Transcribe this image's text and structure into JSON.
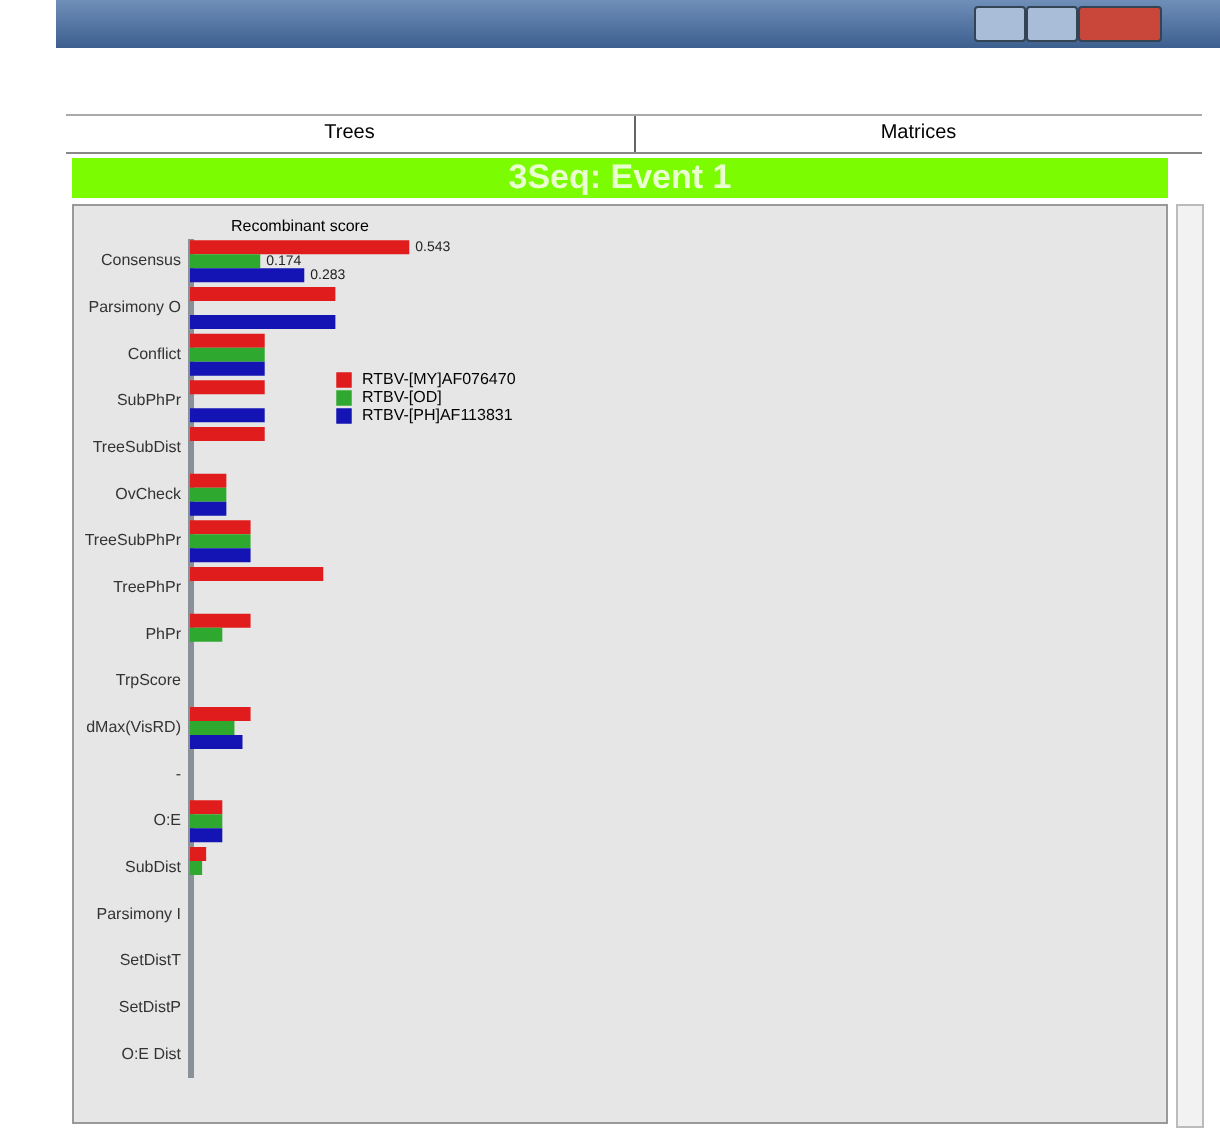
{
  "chart_data": {
    "type": "bar",
    "orientation": "horizontal",
    "title": "3Seq: Event 1",
    "xlabel": "Recombinant score",
    "annotations": [
      "Trees",
      "Matrices"
    ],
    "categories": [
      "Consensus",
      "Parsimony O",
      "Conflict",
      "SubPhPr",
      "TreeSubDist",
      "OvCheck",
      "TreeSubPhPr",
      "TreePhPr",
      "PhPr",
      "TrpScore",
      "dMax(VisRD)",
      "-",
      "O:E",
      "SubDist",
      "Parsimony I",
      "SetDistT",
      "SetDistP",
      "O:E Dist"
    ],
    "series": [
      {
        "name": "RTBV-[MY]AF076470",
        "color": "#e01c1c",
        "values": [
          0.543,
          0.36,
          0.185,
          0.185,
          0.185,
          0.09,
          0.15,
          0.33,
          0.15,
          0,
          0.15,
          0,
          0.08,
          0.04,
          0,
          0,
          0,
          0
        ],
        "value_labels": [
          "0.543",
          null,
          null,
          null,
          null,
          null,
          null,
          null,
          null,
          null,
          null,
          null,
          null,
          null,
          null,
          null,
          null,
          null
        ]
      },
      {
        "name": "RTBV-[OD]",
        "color": "#2fa82f",
        "values": [
          0.174,
          0,
          0.185,
          0,
          0,
          0.09,
          0.15,
          0,
          0.08,
          0,
          0.11,
          0,
          0.08,
          0.03,
          0,
          0,
          0,
          0
        ],
        "value_labels": [
          "0.174",
          null,
          null,
          null,
          null,
          null,
          null,
          null,
          null,
          null,
          null,
          null,
          null,
          null,
          null,
          null,
          null,
          null
        ]
      },
      {
        "name": "RTBV-[PH]AF113831",
        "color": "#1414b4",
        "values": [
          0.283,
          0.36,
          0.185,
          0.185,
          0,
          0.09,
          0.15,
          0,
          0,
          0,
          0.13,
          0,
          0.08,
          0,
          0,
          0,
          0,
          0
        ],
        "value_labels": [
          "0.283",
          null,
          null,
          null,
          null,
          null,
          null,
          null,
          null,
          null,
          null,
          null,
          null,
          null,
          null,
          null,
          null,
          null
        ]
      }
    ],
    "legend": "top"
  }
}
